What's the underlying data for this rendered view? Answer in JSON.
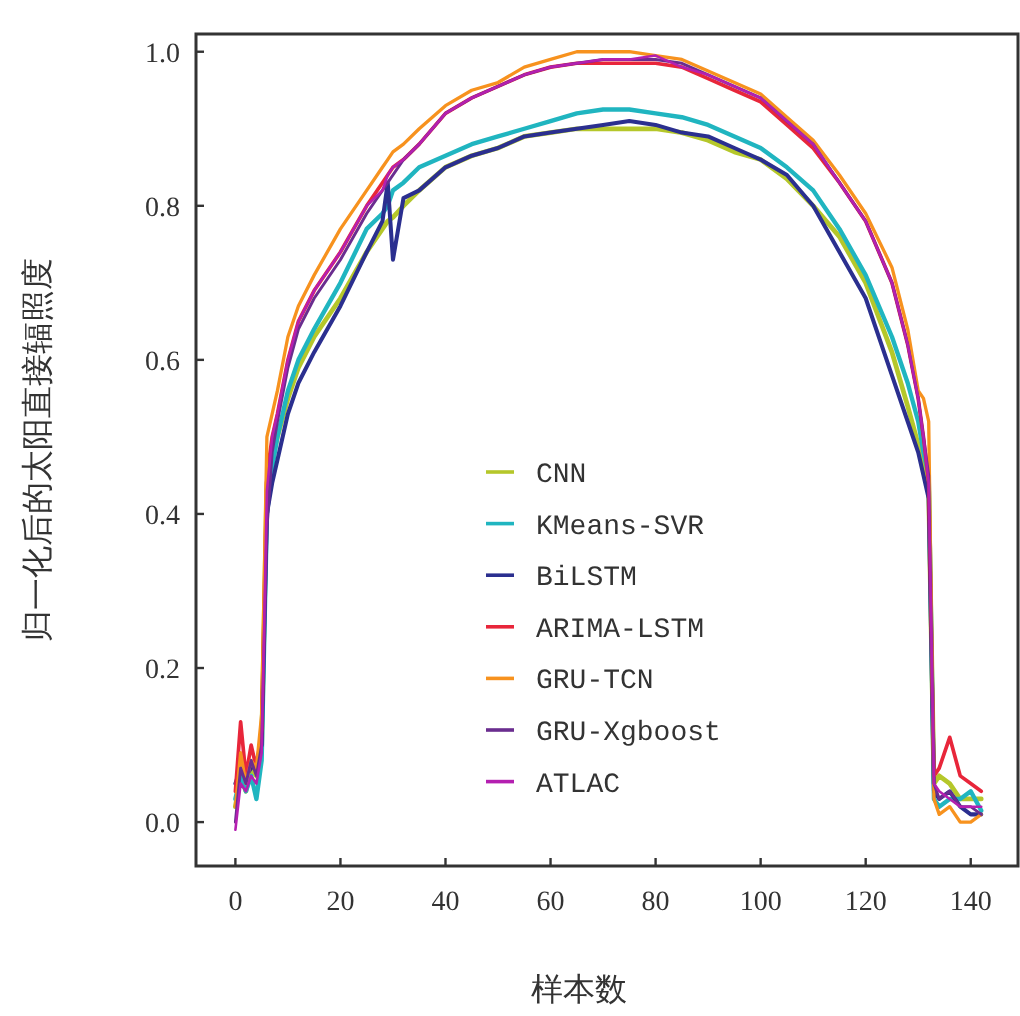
{
  "chart_data": {
    "type": "line",
    "xlabel": "样本数",
    "ylabel": "归一化后的太阳直接辐照度",
    "x": [
      0,
      1,
      2,
      3,
      4,
      5,
      6,
      7,
      8,
      10,
      12,
      15,
      20,
      25,
      28,
      29,
      30,
      32,
      35,
      40,
      45,
      50,
      55,
      60,
      65,
      70,
      75,
      80,
      85,
      90,
      95,
      100,
      105,
      110,
      115,
      120,
      125,
      128,
      130,
      131,
      132,
      133,
      134,
      136,
      138,
      140,
      142
    ],
    "xlim": [
      -7.5,
      149
    ],
    "xticks": [
      0,
      20,
      40,
      60,
      80,
      100,
      120,
      140
    ],
    "ylim": [
      -0.057,
      1.023
    ],
    "yticks": [
      {
        "value": 0,
        "label": "0.0"
      },
      {
        "value": 0.2,
        "label": "0.2"
      },
      {
        "value": 0.4,
        "label": "0.4"
      },
      {
        "value": 0.6,
        "label": "0.6"
      },
      {
        "value": 0.8,
        "label": "0.8"
      },
      {
        "value": 1,
        "label": "1.0"
      }
    ],
    "legend": "center",
    "grid": false,
    "marker": "none",
    "line_style": "solid",
    "series": [
      {
        "name": "CNN",
        "color": "#b5c72a",
        "values": [
          0.02,
          0.06,
          0.04,
          0.07,
          0.06,
          0.1,
          0.44,
          0.47,
          0.5,
          0.55,
          0.59,
          0.63,
          0.68,
          0.74,
          0.77,
          0.78,
          0.785,
          0.8,
          0.82,
          0.85,
          0.865,
          0.875,
          0.89,
          0.895,
          0.9,
          0.9,
          0.9,
          0.9,
          0.895,
          0.885,
          0.87,
          0.86,
          0.835,
          0.8,
          0.76,
          0.7,
          0.61,
          0.54,
          0.49,
          0.46,
          0.43,
          0.05,
          0.06,
          0.05,
          0.03,
          0.03,
          0.03
        ]
      },
      {
        "name": "KMeans-SVR",
        "color": "#20b5c0",
        "values": [
          0.03,
          0.06,
          0.04,
          0.06,
          0.03,
          0.08,
          0.4,
          0.46,
          0.5,
          0.56,
          0.6,
          0.64,
          0.7,
          0.77,
          0.79,
          0.8,
          0.82,
          0.83,
          0.85,
          0.865,
          0.88,
          0.89,
          0.9,
          0.91,
          0.92,
          0.925,
          0.925,
          0.92,
          0.915,
          0.905,
          0.89,
          0.875,
          0.85,
          0.82,
          0.77,
          0.71,
          0.63,
          0.57,
          0.52,
          0.48,
          0.45,
          0.03,
          0.02,
          0.03,
          0.03,
          0.04,
          0.015
        ]
      },
      {
        "name": "BiLSTM",
        "color": "#2b2f8f",
        "values": [
          0.05,
          0.07,
          0.06,
          0.07,
          0.08,
          0.1,
          0.4,
          0.44,
          0.47,
          0.53,
          0.57,
          0.61,
          0.67,
          0.74,
          0.78,
          0.83,
          0.73,
          0.81,
          0.82,
          0.85,
          0.865,
          0.875,
          0.89,
          0.895,
          0.9,
          0.905,
          0.91,
          0.905,
          0.895,
          0.89,
          0.875,
          0.86,
          0.84,
          0.8,
          0.74,
          0.68,
          0.58,
          0.52,
          0.48,
          0.45,
          0.42,
          0.04,
          0.03,
          0.04,
          0.02,
          0.01,
          0.01
        ]
      },
      {
        "name": "ARIMA-LSTM",
        "color": "#e8263a",
        "values": [
          0.04,
          0.13,
          0.06,
          0.1,
          0.07,
          0.12,
          0.45,
          0.5,
          0.53,
          0.6,
          0.65,
          0.69,
          0.74,
          0.8,
          0.83,
          0.84,
          0.85,
          0.86,
          0.88,
          0.92,
          0.94,
          0.955,
          0.97,
          0.98,
          0.985,
          0.985,
          0.985,
          0.985,
          0.98,
          0.965,
          0.95,
          0.935,
          0.905,
          0.875,
          0.83,
          0.78,
          0.7,
          0.62,
          0.55,
          0.5,
          0.44,
          0.06,
          0.07,
          0.11,
          0.06,
          0.05,
          0.04
        ]
      },
      {
        "name": "GRU-TCN",
        "color": "#f7921e",
        "values": [
          0.02,
          0.09,
          0.05,
          0.08,
          0.07,
          0.14,
          0.5,
          0.53,
          0.56,
          0.63,
          0.67,
          0.71,
          0.77,
          0.82,
          0.85,
          0.86,
          0.87,
          0.88,
          0.9,
          0.93,
          0.95,
          0.96,
          0.98,
          0.99,
          1.0,
          1.0,
          1.0,
          0.995,
          0.99,
          0.975,
          0.96,
          0.945,
          0.915,
          0.885,
          0.84,
          0.79,
          0.72,
          0.64,
          0.56,
          0.55,
          0.52,
          0.03,
          0.01,
          0.02,
          0.0,
          0.0,
          0.01
        ]
      },
      {
        "name": "GRU-Xgboost",
        "color": "#6a2d8f",
        "values": [
          0.0,
          0.07,
          0.05,
          0.08,
          0.06,
          0.1,
          0.38,
          0.48,
          0.52,
          0.59,
          0.64,
          0.68,
          0.73,
          0.79,
          0.82,
          0.83,
          0.84,
          0.86,
          0.88,
          0.92,
          0.94,
          0.955,
          0.97,
          0.98,
          0.985,
          0.99,
          0.99,
          0.99,
          0.985,
          0.97,
          0.955,
          0.94,
          0.91,
          0.88,
          0.83,
          0.78,
          0.7,
          0.62,
          0.55,
          0.5,
          0.45,
          0.05,
          0.03,
          0.04,
          0.02,
          0.02,
          0.01
        ]
      },
      {
        "name": "ATLAC",
        "color": "#b41fb0",
        "values": [
          -0.01,
          0.05,
          0.04,
          0.06,
          0.05,
          0.09,
          0.43,
          0.5,
          0.53,
          0.6,
          0.65,
          0.69,
          0.74,
          0.8,
          0.82,
          0.84,
          0.85,
          0.86,
          0.88,
          0.92,
          0.94,
          0.955,
          0.97,
          0.98,
          0.985,
          0.99,
          0.99,
          0.995,
          0.98,
          0.97,
          0.955,
          0.94,
          0.91,
          0.88,
          0.83,
          0.78,
          0.7,
          0.62,
          0.55,
          0.5,
          0.44,
          0.05,
          0.04,
          0.03,
          0.02,
          0.02,
          0.02
        ]
      }
    ]
  }
}
